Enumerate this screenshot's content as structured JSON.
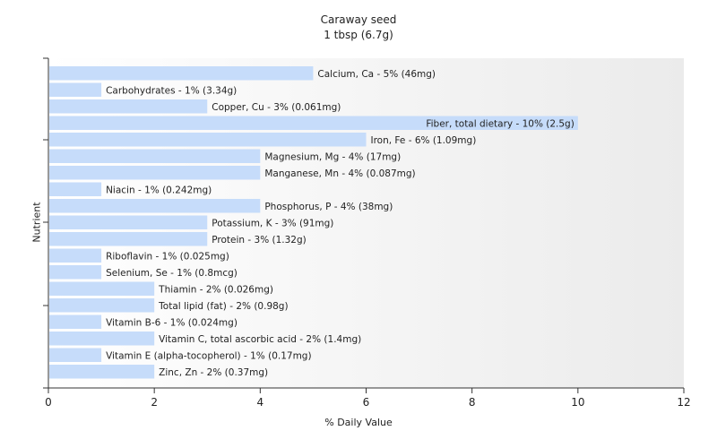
{
  "chart_data": {
    "type": "bar",
    "orientation": "horizontal",
    "title": "Caraway seed",
    "subtitle": "1 tbsp (6.7g)",
    "xlabel": "% Daily Value",
    "ylabel": "Nutrient",
    "xlim": [
      0,
      12
    ],
    "xticks": [
      "0",
      "2",
      "4",
      "6",
      "8",
      "10",
      "12"
    ],
    "grid": false,
    "legend": "none",
    "bar_color": "#c6dcfa",
    "bars": [
      {
        "label": "Calcium, Ca - 5% (46mg)",
        "value": 5
      },
      {
        "label": "Carbohydrates - 1% (3.34g)",
        "value": 1
      },
      {
        "label": "Copper, Cu - 3% (0.061mg)",
        "value": 3
      },
      {
        "label": "Fiber, total dietary - 10% (2.5g)",
        "value": 10
      },
      {
        "label": "Iron, Fe - 6% (1.09mg)",
        "value": 6
      },
      {
        "label": "Magnesium, Mg - 4% (17mg)",
        "value": 4
      },
      {
        "label": "Manganese, Mn - 4% (0.087mg)",
        "value": 4
      },
      {
        "label": "Niacin - 1% (0.242mg)",
        "value": 1
      },
      {
        "label": "Phosphorus, P - 4% (38mg)",
        "value": 4
      },
      {
        "label": "Potassium, K - 3% (91mg)",
        "value": 3
      },
      {
        "label": "Protein - 3% (1.32g)",
        "value": 3
      },
      {
        "label": "Riboflavin - 1% (0.025mg)",
        "value": 1
      },
      {
        "label": "Selenium, Se - 1% (0.8mcg)",
        "value": 1
      },
      {
        "label": "Thiamin - 2% (0.026mg)",
        "value": 2
      },
      {
        "label": "Total lipid (fat) - 2% (0.98g)",
        "value": 2
      },
      {
        "label": "Vitamin B-6 - 1% (0.024mg)",
        "value": 1
      },
      {
        "label": "Vitamin C, total ascorbic acid - 2% (1.4mg)",
        "value": 2
      },
      {
        "label": "Vitamin E (alpha-tocopherol) - 1% (0.17mg)",
        "value": 1
      },
      {
        "label": "Zinc, Zn - 2% (0.37mg)",
        "value": 2
      }
    ]
  }
}
